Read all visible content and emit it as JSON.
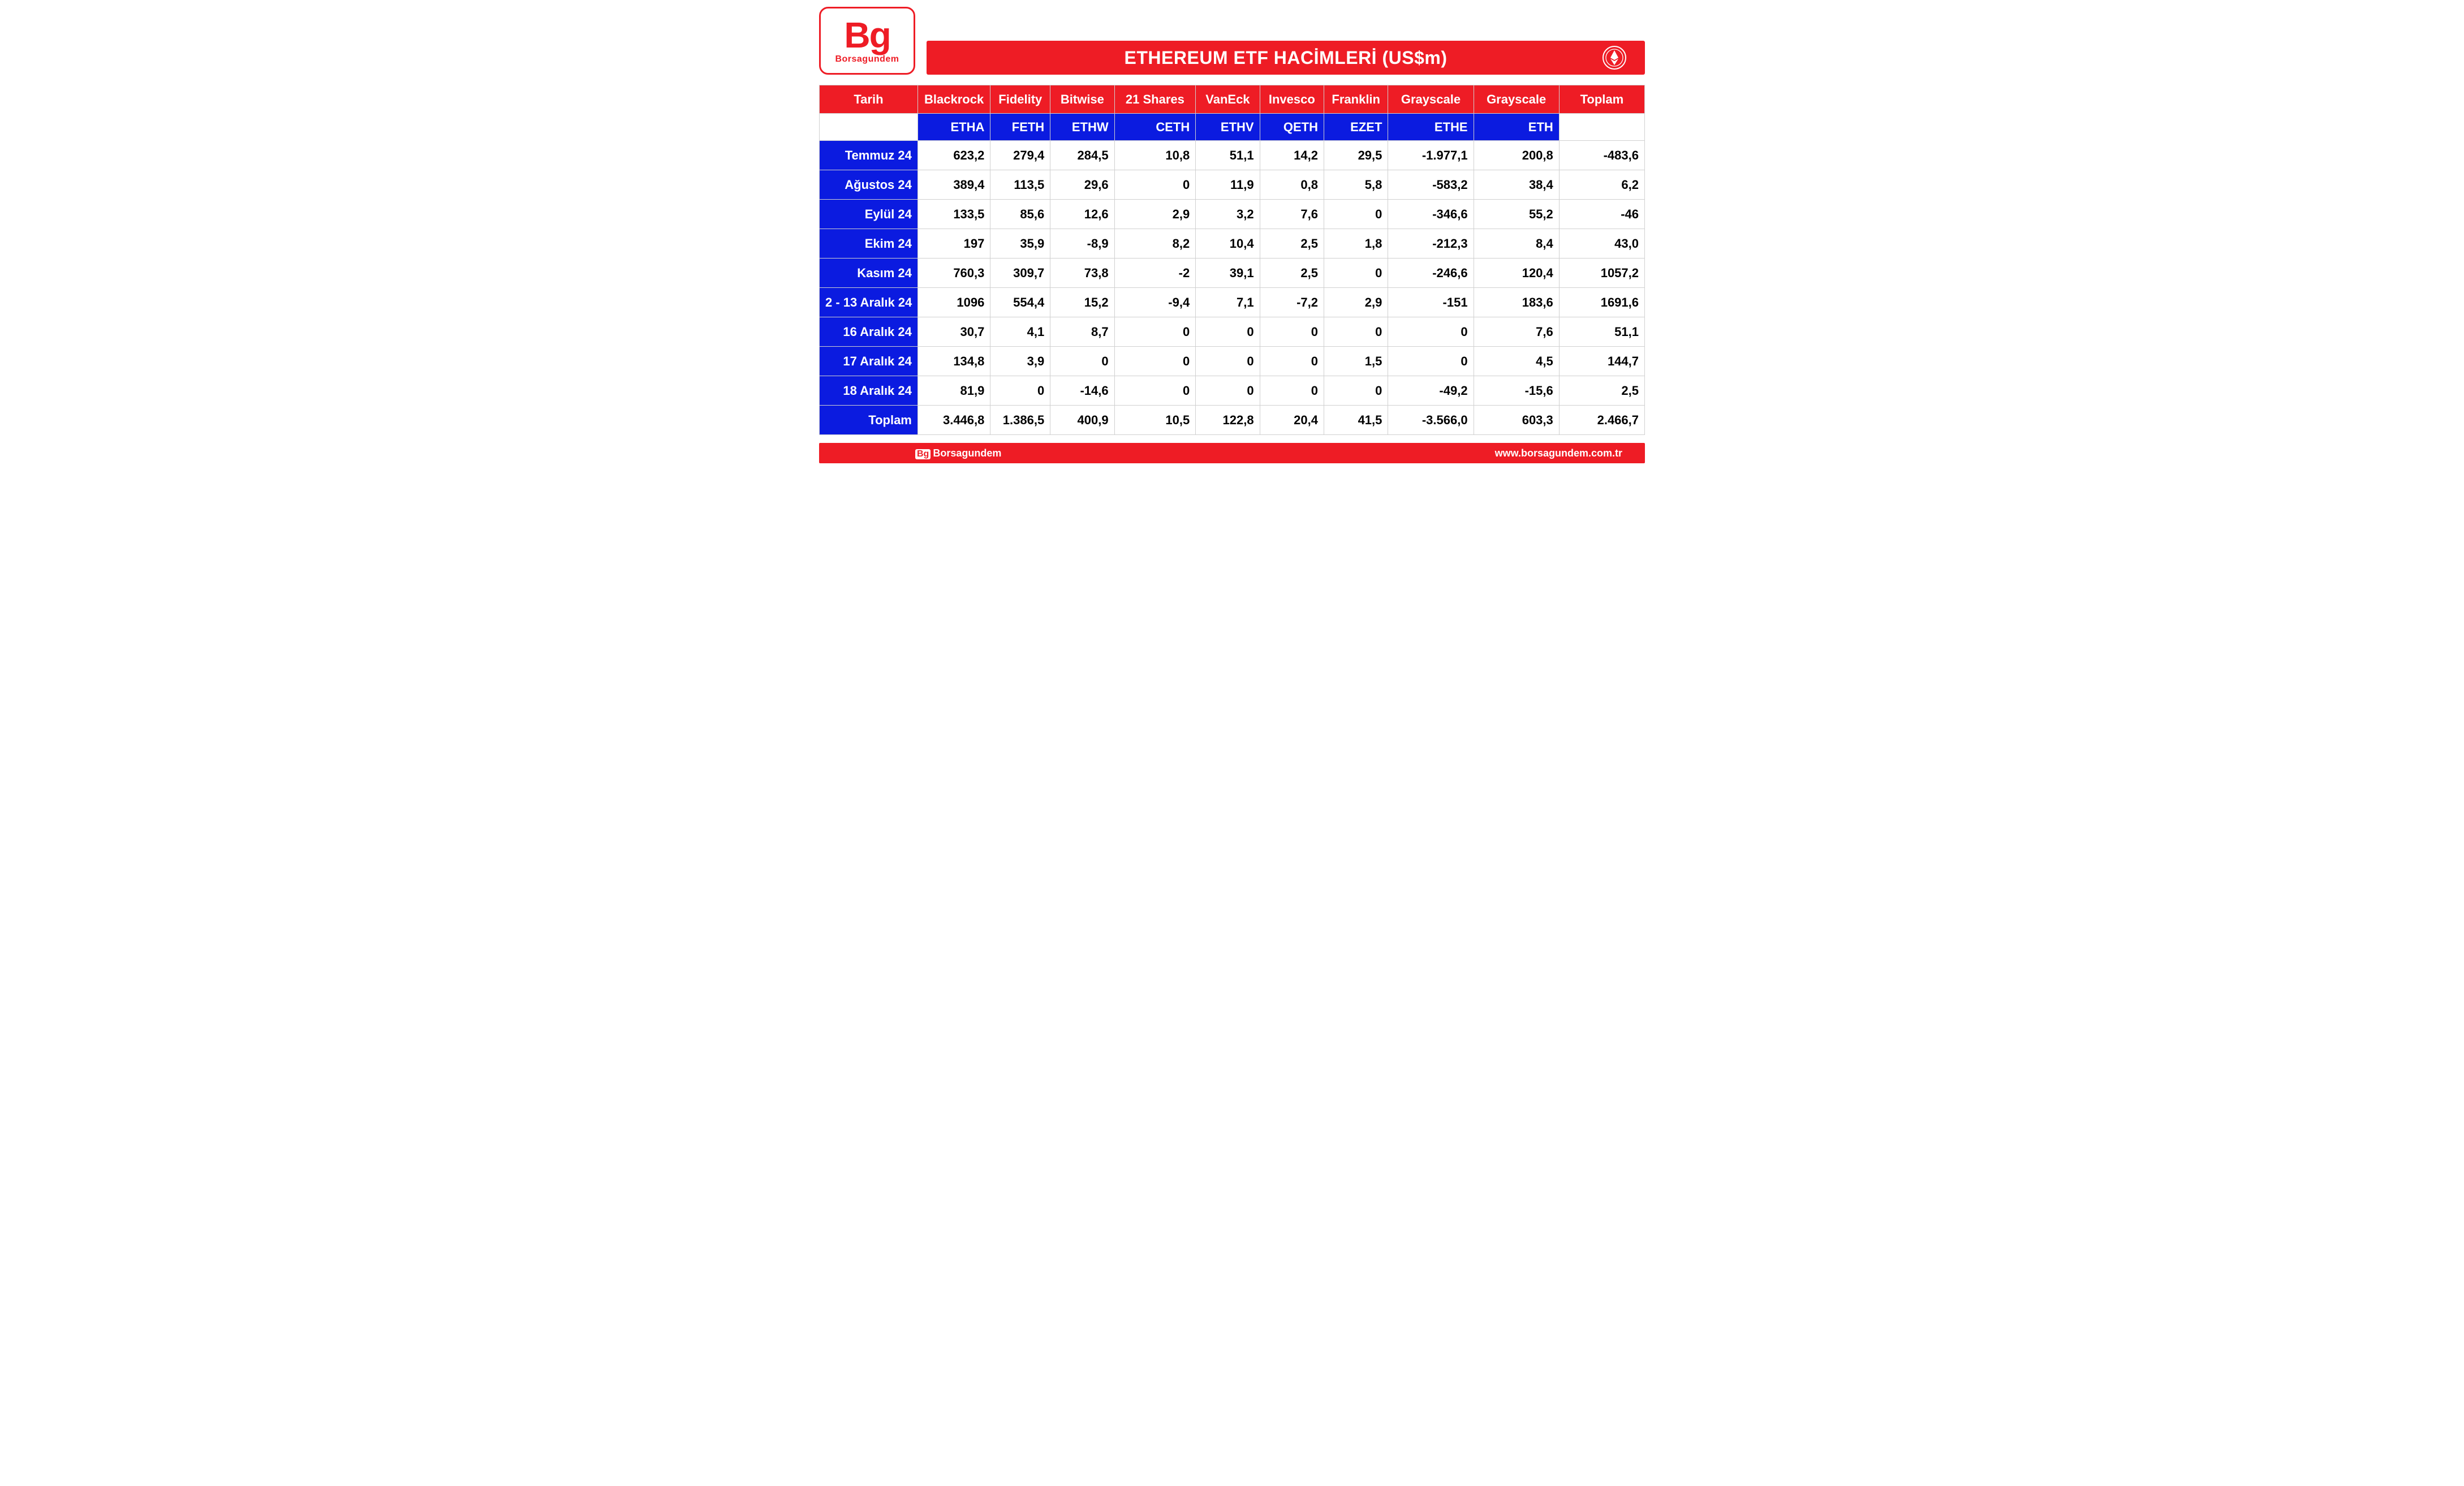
{
  "logo": {
    "big": "Bg",
    "sub": "Borsagundem"
  },
  "title": "ETHEREUM ETF HACİMLERİ (US$m)",
  "colors": {
    "brand_red": "#ee1c25",
    "brand_blue": "#0b1be0",
    "white": "#ffffff",
    "text": "#000000",
    "grid": "#d0d0d0"
  },
  "table": {
    "type": "table",
    "header_bg": "#ee1c25",
    "ticker_bg": "#0b1be0",
    "rowlabel_bg": "#0b1be0",
    "cell_bg": "#ffffff",
    "font_size": 22,
    "font_weight": 700,
    "columns": [
      {
        "key": "date",
        "label": "Tarih",
        "ticker": "",
        "width_pct": 11.5
      },
      {
        "key": "blackrock",
        "label": "Blackrock",
        "ticker": "ETHA",
        "width_pct": 8.5
      },
      {
        "key": "fidelity",
        "label": "Fidelity",
        "ticker": "FETH",
        "width_pct": 7.0
      },
      {
        "key": "bitwise",
        "label": "Bitwise",
        "ticker": "ETHW",
        "width_pct": 7.5
      },
      {
        "key": "21shares",
        "label": "21 Shares",
        "ticker": "CETH",
        "width_pct": 9.5
      },
      {
        "key": "vaneck",
        "label": "VanEck",
        "ticker": "ETHV",
        "width_pct": 7.5
      },
      {
        "key": "invesco",
        "label": "Invesco",
        "ticker": "QETH",
        "width_pct": 7.5
      },
      {
        "key": "franklin",
        "label": "Franklin",
        "ticker": "EZET",
        "width_pct": 7.5
      },
      {
        "key": "grayscale1",
        "label": "Grayscale",
        "ticker": "ETHE",
        "width_pct": 10
      },
      {
        "key": "grayscale2",
        "label": "Grayscale",
        "ticker": "ETH",
        "width_pct": 10
      },
      {
        "key": "total",
        "label": "Toplam",
        "ticker": "",
        "width_pct": 10
      }
    ],
    "rows": [
      {
        "date": "Temmuz 24",
        "blackrock": "623,2",
        "fidelity": "279,4",
        "bitwise": "284,5",
        "21shares": "10,8",
        "vaneck": "51,1",
        "invesco": "14,2",
        "franklin": "29,5",
        "grayscale1": "-1.977,1",
        "grayscale2": "200,8",
        "total": "-483,6"
      },
      {
        "date": "Ağustos 24",
        "blackrock": "389,4",
        "fidelity": "113,5",
        "bitwise": "29,6",
        "21shares": "0",
        "vaneck": "11,9",
        "invesco": "0,8",
        "franklin": "5,8",
        "grayscale1": "-583,2",
        "grayscale2": "38,4",
        "total": "6,2"
      },
      {
        "date": "Eylül 24",
        "blackrock": "133,5",
        "fidelity": "85,6",
        "bitwise": "12,6",
        "21shares": "2,9",
        "vaneck": "3,2",
        "invesco": "7,6",
        "franklin": "0",
        "grayscale1": "-346,6",
        "grayscale2": "55,2",
        "total": "-46"
      },
      {
        "date": "Ekim 24",
        "blackrock": "197",
        "fidelity": "35,9",
        "bitwise": "-8,9",
        "21shares": "8,2",
        "vaneck": "10,4",
        "invesco": "2,5",
        "franklin": "1,8",
        "grayscale1": "-212,3",
        "grayscale2": "8,4",
        "total": "43,0"
      },
      {
        "date": "Kasım 24",
        "blackrock": "760,3",
        "fidelity": "309,7",
        "bitwise": "73,8",
        "21shares": "-2",
        "vaneck": "39,1",
        "invesco": "2,5",
        "franklin": "0",
        "grayscale1": "-246,6",
        "grayscale2": "120,4",
        "total": "1057,2"
      },
      {
        "date": "2 - 13 Aralık 24",
        "blackrock": "1096",
        "fidelity": "554,4",
        "bitwise": "15,2",
        "21shares": "-9,4",
        "vaneck": "7,1",
        "invesco": "-7,2",
        "franklin": "2,9",
        "grayscale1": "-151",
        "grayscale2": "183,6",
        "total": "1691,6"
      },
      {
        "date": "16 Aralık 24",
        "blackrock": "30,7",
        "fidelity": "4,1",
        "bitwise": "8,7",
        "21shares": "0",
        "vaneck": "0",
        "invesco": "0",
        "franklin": "0",
        "grayscale1": "0",
        "grayscale2": "7,6",
        "total": "51,1"
      },
      {
        "date": "17 Aralık 24",
        "blackrock": "134,8",
        "fidelity": "3,9",
        "bitwise": "0",
        "21shares": "0",
        "vaneck": "0",
        "invesco": "0",
        "franklin": "1,5",
        "grayscale1": "0",
        "grayscale2": "4,5",
        "total": "144,7"
      },
      {
        "date": "18 Aralık 24",
        "blackrock": "81,9",
        "fidelity": "0",
        "bitwise": "-14,6",
        "21shares": "0",
        "vaneck": "0",
        "invesco": "0",
        "franklin": "0",
        "grayscale1": "-49,2",
        "grayscale2": "-15,6",
        "total": "2,5"
      },
      {
        "date": "Toplam",
        "blackrock": "3.446,8",
        "fidelity": "1.386,5",
        "bitwise": "400,9",
        "21shares": "10,5",
        "vaneck": "122,8",
        "invesco": "20,4",
        "franklin": "41,5",
        "grayscale1": "-3.566,0",
        "grayscale2": "603,3",
        "total": "2.466,7"
      }
    ]
  },
  "footer": {
    "brand_mini": "Bg",
    "brand_text": "Borsagundem",
    "url": "www.borsagundem.com.tr"
  }
}
